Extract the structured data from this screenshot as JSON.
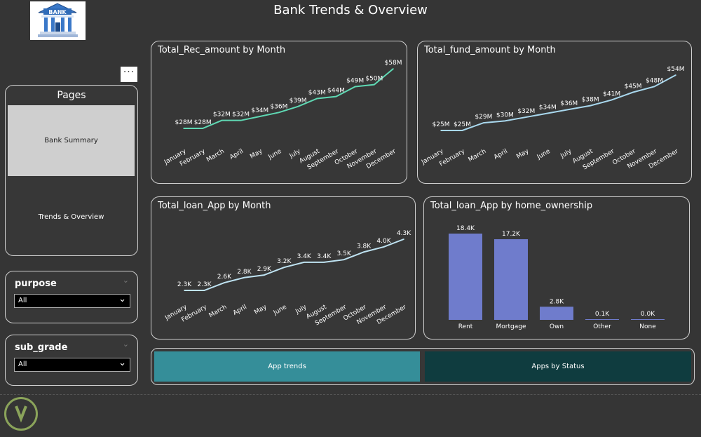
{
  "header": {
    "title": "Bank Trends & Overview",
    "logo_text": "BANK"
  },
  "more_button": "···",
  "pages": {
    "title": "Pages",
    "items": [
      "Bank Summary",
      "Trends & Overview"
    ]
  },
  "filters": {
    "purpose": {
      "label": "purpose",
      "value": "All"
    },
    "sub_grade": {
      "label": "sub_grade",
      "value": "All"
    }
  },
  "tabs": [
    "App trends",
    "Apps by Status"
  ],
  "colors": {
    "rec_line": "#5fd9b4",
    "fund_line": "#a9d8ee",
    "app_line": "#bfe3f2",
    "bar": "#6f7ccc",
    "tab_active": "#358e99",
    "tab_inactive": "#0f3c3f"
  },
  "chart_data": [
    {
      "type": "line",
      "title": "Total_Rec_amount by Month",
      "categories": [
        "January",
        "February",
        "March",
        "April",
        "May",
        "June",
        "July",
        "August",
        "September",
        "October",
        "November",
        "December"
      ],
      "values": [
        28,
        28,
        32,
        32,
        34,
        36,
        39,
        43,
        44,
        49,
        50,
        58
      ],
      "labels": [
        "$28M",
        "$28M",
        "$32M",
        "$32M",
        "$34M",
        "$36M",
        "$39M",
        "$43M",
        "$44M",
        "$49M",
        "$50M",
        "$58M"
      ]
    },
    {
      "type": "line",
      "title": "Total_fund_amount by Month",
      "categories": [
        "January",
        "February",
        "March",
        "April",
        "May",
        "June",
        "July",
        "August",
        "September",
        "October",
        "November",
        "December"
      ],
      "values": [
        25,
        25,
        29,
        30,
        32,
        34,
        36,
        38,
        41,
        45,
        48,
        54
      ],
      "labels": [
        "$25M",
        "$25M",
        "$29M",
        "$30M",
        "$32M",
        "$34M",
        "$36M",
        "$38M",
        "$41M",
        "$45M",
        "$48M",
        "$54M"
      ]
    },
    {
      "type": "line",
      "title": "Total_loan_App by Month",
      "categories": [
        "January",
        "February",
        "March",
        "April",
        "May",
        "June",
        "July",
        "August",
        "September",
        "October",
        "November",
        "December"
      ],
      "values": [
        2.3,
        2.3,
        2.6,
        2.8,
        2.9,
        3.2,
        3.4,
        3.4,
        3.5,
        3.8,
        4.0,
        4.3
      ],
      "labels": [
        "2.3K",
        "2.3K",
        "2.6K",
        "2.8K",
        "2.9K",
        "3.2K",
        "3.4K",
        "3.4K",
        "3.5K",
        "3.8K",
        "4.0K",
        "4.3K"
      ]
    },
    {
      "type": "bar",
      "title": "Total_loan_App by home_ownership",
      "categories": [
        "Rent",
        "Mortgage",
        "Own",
        "Other",
        "None"
      ],
      "values": [
        18.4,
        17.2,
        2.8,
        0.1,
        0.0
      ],
      "labels": [
        "18.4K",
        "17.2K",
        "2.8K",
        "0.1K",
        "0.0K"
      ]
    }
  ]
}
